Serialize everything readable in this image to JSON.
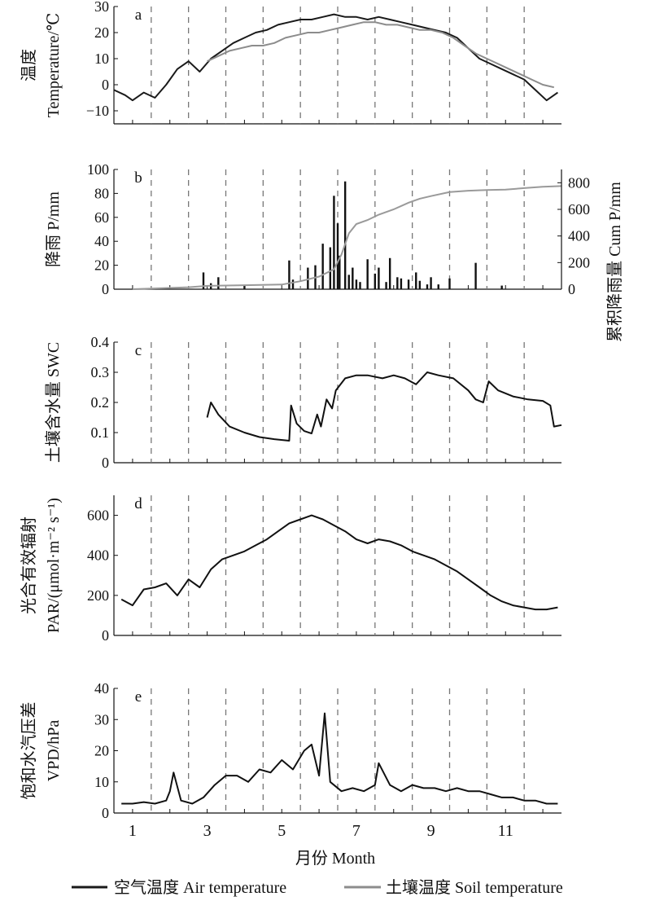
{
  "figure": {
    "xlabel": "月份 Month",
    "xticks": [
      "1",
      "3",
      "5",
      "7",
      "9",
      "11"
    ],
    "legend": [
      {
        "label": "空气温度 Air temperature",
        "color": "#1a1a1a"
      },
      {
        "label": "土壤温度 Soil temperature",
        "color": "#8c8c8c"
      }
    ]
  },
  "chart_data": [
    {
      "panel": "a",
      "type": "line",
      "ylabel_lines": [
        "温度",
        "Temperature/℃"
      ],
      "ylim": [
        -15,
        30
      ],
      "yticks": [
        "30",
        "20",
        "10",
        "0",
        "−10"
      ],
      "x_range_month": [
        0.5,
        12.5
      ],
      "dashed_month_boundaries": [
        1.5,
        2.5,
        3.5,
        4.5,
        5.5,
        6.5,
        7.5,
        8.5,
        9.5,
        10.5,
        11.5
      ],
      "series": [
        {
          "name": "空气温度 Air temperature",
          "color": "#1a1a1a",
          "x": [
            0.5,
            0.8,
            1.0,
            1.3,
            1.6,
            1.9,
            2.2,
            2.5,
            2.8,
            3.1,
            3.4,
            3.7,
            4.0,
            4.3,
            4.6,
            4.9,
            5.2,
            5.5,
            5.8,
            6.1,
            6.4,
            6.7,
            7.0,
            7.3,
            7.6,
            7.9,
            8.2,
            8.5,
            8.8,
            9.1,
            9.4,
            9.7,
            10.0,
            10.3,
            10.6,
            10.9,
            11.2,
            11.5,
            11.8,
            12.1,
            12.4
          ],
          "y": [
            -2,
            -4,
            -6,
            -3,
            -5,
            0,
            6,
            9,
            5,
            10,
            13,
            16,
            18,
            20,
            21,
            23,
            24,
            25,
            25,
            26,
            27,
            26,
            26,
            25,
            26,
            25,
            24,
            23,
            22,
            21,
            20,
            18,
            14,
            10,
            8,
            6,
            4,
            2,
            -2,
            -6,
            -3
          ]
        },
        {
          "name": "土壤温度 Soil temperature",
          "color": "#8c8c8c",
          "x": [
            3.0,
            3.3,
            3.6,
            3.9,
            4.2,
            4.5,
            4.8,
            5.1,
            5.4,
            5.7,
            6.0,
            6.3,
            6.6,
            6.9,
            7.2,
            7.5,
            7.8,
            8.1,
            8.4,
            8.7,
            9.0,
            9.3,
            9.6,
            9.9,
            10.2,
            10.5,
            10.8,
            11.1,
            11.4,
            11.7,
            12.0,
            12.3
          ],
          "y": [
            9,
            11,
            13,
            14,
            15,
            15,
            16,
            18,
            19,
            20,
            20,
            21,
            22,
            23,
            24,
            24,
            23,
            23,
            22,
            21,
            21,
            20,
            18,
            15,
            12,
            10,
            8,
            6,
            4,
            2,
            0,
            -1
          ]
        }
      ]
    },
    {
      "panel": "b",
      "type": "bar",
      "ylabel": "降雨 P/mm",
      "ylim": [
        0,
        100
      ],
      "yticks": [
        "100",
        "80",
        "60",
        "40",
        "20",
        "0"
      ],
      "y2label": "累积降雨量 Cum P/mm",
      "y2lim": [
        0,
        900
      ],
      "y2ticks": [
        "800",
        "600",
        "400",
        "200",
        "0"
      ],
      "rain_events": {
        "x": [
          2.9,
          3.1,
          3.3,
          4.0,
          5.2,
          5.3,
          5.7,
          5.9,
          6.1,
          6.3,
          6.4,
          6.5,
          6.55,
          6.7,
          6.8,
          6.9,
          7.0,
          7.1,
          7.3,
          7.5,
          7.6,
          7.8,
          7.9,
          8.1,
          8.2,
          8.4,
          8.6,
          8.7,
          8.9,
          9.0,
          9.2,
          9.5,
          10.2,
          10.9
        ],
        "y": [
          14,
          5,
          10,
          3,
          24,
          8,
          18,
          20,
          38,
          35,
          78,
          55,
          28,
          90,
          12,
          18,
          8,
          6,
          25,
          13,
          18,
          6,
          26,
          10,
          9,
          8,
          14,
          7,
          4,
          10,
          4,
          9,
          22,
          3
        ]
      },
      "cumulative": {
        "name": "累积降雨量 Cum P/mm",
        "x": [
          1.0,
          2.5,
          3.0,
          4.0,
          5.0,
          5.5,
          6.0,
          6.4,
          6.6,
          6.8,
          7.0,
          7.3,
          7.6,
          8.0,
          8.4,
          8.7,
          9.0,
          9.5,
          10.0,
          10.5,
          11.0,
          11.5,
          12.0,
          12.5
        ],
        "y": [
          0,
          15,
          25,
          30,
          35,
          60,
          95,
          150,
          260,
          420,
          490,
          520,
          560,
          600,
          650,
          680,
          700,
          730,
          740,
          745,
          748,
          760,
          770,
          775
        ]
      }
    },
    {
      "panel": "c",
      "type": "line",
      "ylabel": "土壤含水量 SWC",
      "ylim": [
        0,
        0.4
      ],
      "yticks": [
        "0.4",
        "0.3",
        "0.2",
        "0.1",
        "0"
      ],
      "series": [
        {
          "name": "SWC",
          "x": [
            3.0,
            3.1,
            3.3,
            3.6,
            4.0,
            4.4,
            4.8,
            5.2,
            5.25,
            5.4,
            5.6,
            5.8,
            5.95,
            6.05,
            6.2,
            6.35,
            6.45,
            6.7,
            7.0,
            7.3,
            7.7,
            8.0,
            8.3,
            8.6,
            8.9,
            9.2,
            9.6,
            10.0,
            10.2,
            10.4,
            10.55,
            10.8,
            11.2,
            11.6,
            12.0,
            12.2,
            12.3,
            12.5
          ],
          "y": [
            0.15,
            0.2,
            0.16,
            0.12,
            0.1,
            0.085,
            0.078,
            0.073,
            0.19,
            0.13,
            0.105,
            0.097,
            0.16,
            0.12,
            0.21,
            0.18,
            0.24,
            0.28,
            0.29,
            0.29,
            0.28,
            0.29,
            0.28,
            0.26,
            0.3,
            0.29,
            0.28,
            0.24,
            0.21,
            0.2,
            0.27,
            0.24,
            0.22,
            0.21,
            0.205,
            0.19,
            0.12,
            0.125
          ]
        }
      ]
    },
    {
      "panel": "d",
      "type": "line",
      "ylabel_lines": [
        "光合有效辐射",
        "PAR/(μmol·m⁻² s⁻¹)"
      ],
      "ylim": [
        0,
        700
      ],
      "yticks": [
        "600",
        "400",
        "200",
        "0"
      ],
      "series": [
        {
          "name": "PAR",
          "x": [
            0.7,
            1.0,
            1.3,
            1.6,
            1.9,
            2.2,
            2.5,
            2.8,
            3.1,
            3.4,
            3.7,
            4.0,
            4.3,
            4.6,
            4.9,
            5.2,
            5.5,
            5.8,
            6.1,
            6.4,
            6.7,
            7.0,
            7.3,
            7.6,
            7.9,
            8.2,
            8.5,
            8.8,
            9.1,
            9.4,
            9.7,
            10.0,
            10.3,
            10.6,
            10.9,
            11.2,
            11.5,
            11.8,
            12.1,
            12.4
          ],
          "y": [
            180,
            150,
            230,
            240,
            260,
            200,
            280,
            240,
            330,
            380,
            400,
            420,
            450,
            480,
            520,
            560,
            580,
            600,
            580,
            550,
            520,
            480,
            460,
            480,
            470,
            450,
            420,
            400,
            380,
            350,
            320,
            280,
            240,
            200,
            170,
            150,
            140,
            130,
            130,
            140
          ]
        }
      ]
    },
    {
      "panel": "e",
      "type": "line",
      "ylabel_lines": [
        "饱和水汽压差",
        "VPD/hPa"
      ],
      "ylim": [
        0,
        40
      ],
      "yticks": [
        "40",
        "30",
        "20",
        "10",
        "0"
      ],
      "series": [
        {
          "name": "VPD",
          "x": [
            0.7,
            1.0,
            1.3,
            1.6,
            1.9,
            2.0,
            2.1,
            2.3,
            2.6,
            2.9,
            3.2,
            3.5,
            3.8,
            4.1,
            4.4,
            4.7,
            5.0,
            5.3,
            5.6,
            5.8,
            6.0,
            6.15,
            6.3,
            6.6,
            6.9,
            7.2,
            7.5,
            7.6,
            7.9,
            8.2,
            8.5,
            8.8,
            9.1,
            9.4,
            9.7,
            10.0,
            10.3,
            10.6,
            10.9,
            11.2,
            11.5,
            11.8,
            12.1,
            12.4
          ],
          "y": [
            3,
            3,
            3.5,
            3,
            4,
            7,
            13,
            4,
            3,
            5,
            9,
            12,
            12,
            10,
            14,
            13,
            17,
            14,
            20,
            22,
            12,
            32,
            10,
            7,
            8,
            7,
            9,
            16,
            9,
            7,
            9,
            8,
            8,
            7,
            8,
            7,
            7,
            6,
            5,
            5,
            4,
            4,
            3,
            3
          ]
        }
      ]
    }
  ]
}
